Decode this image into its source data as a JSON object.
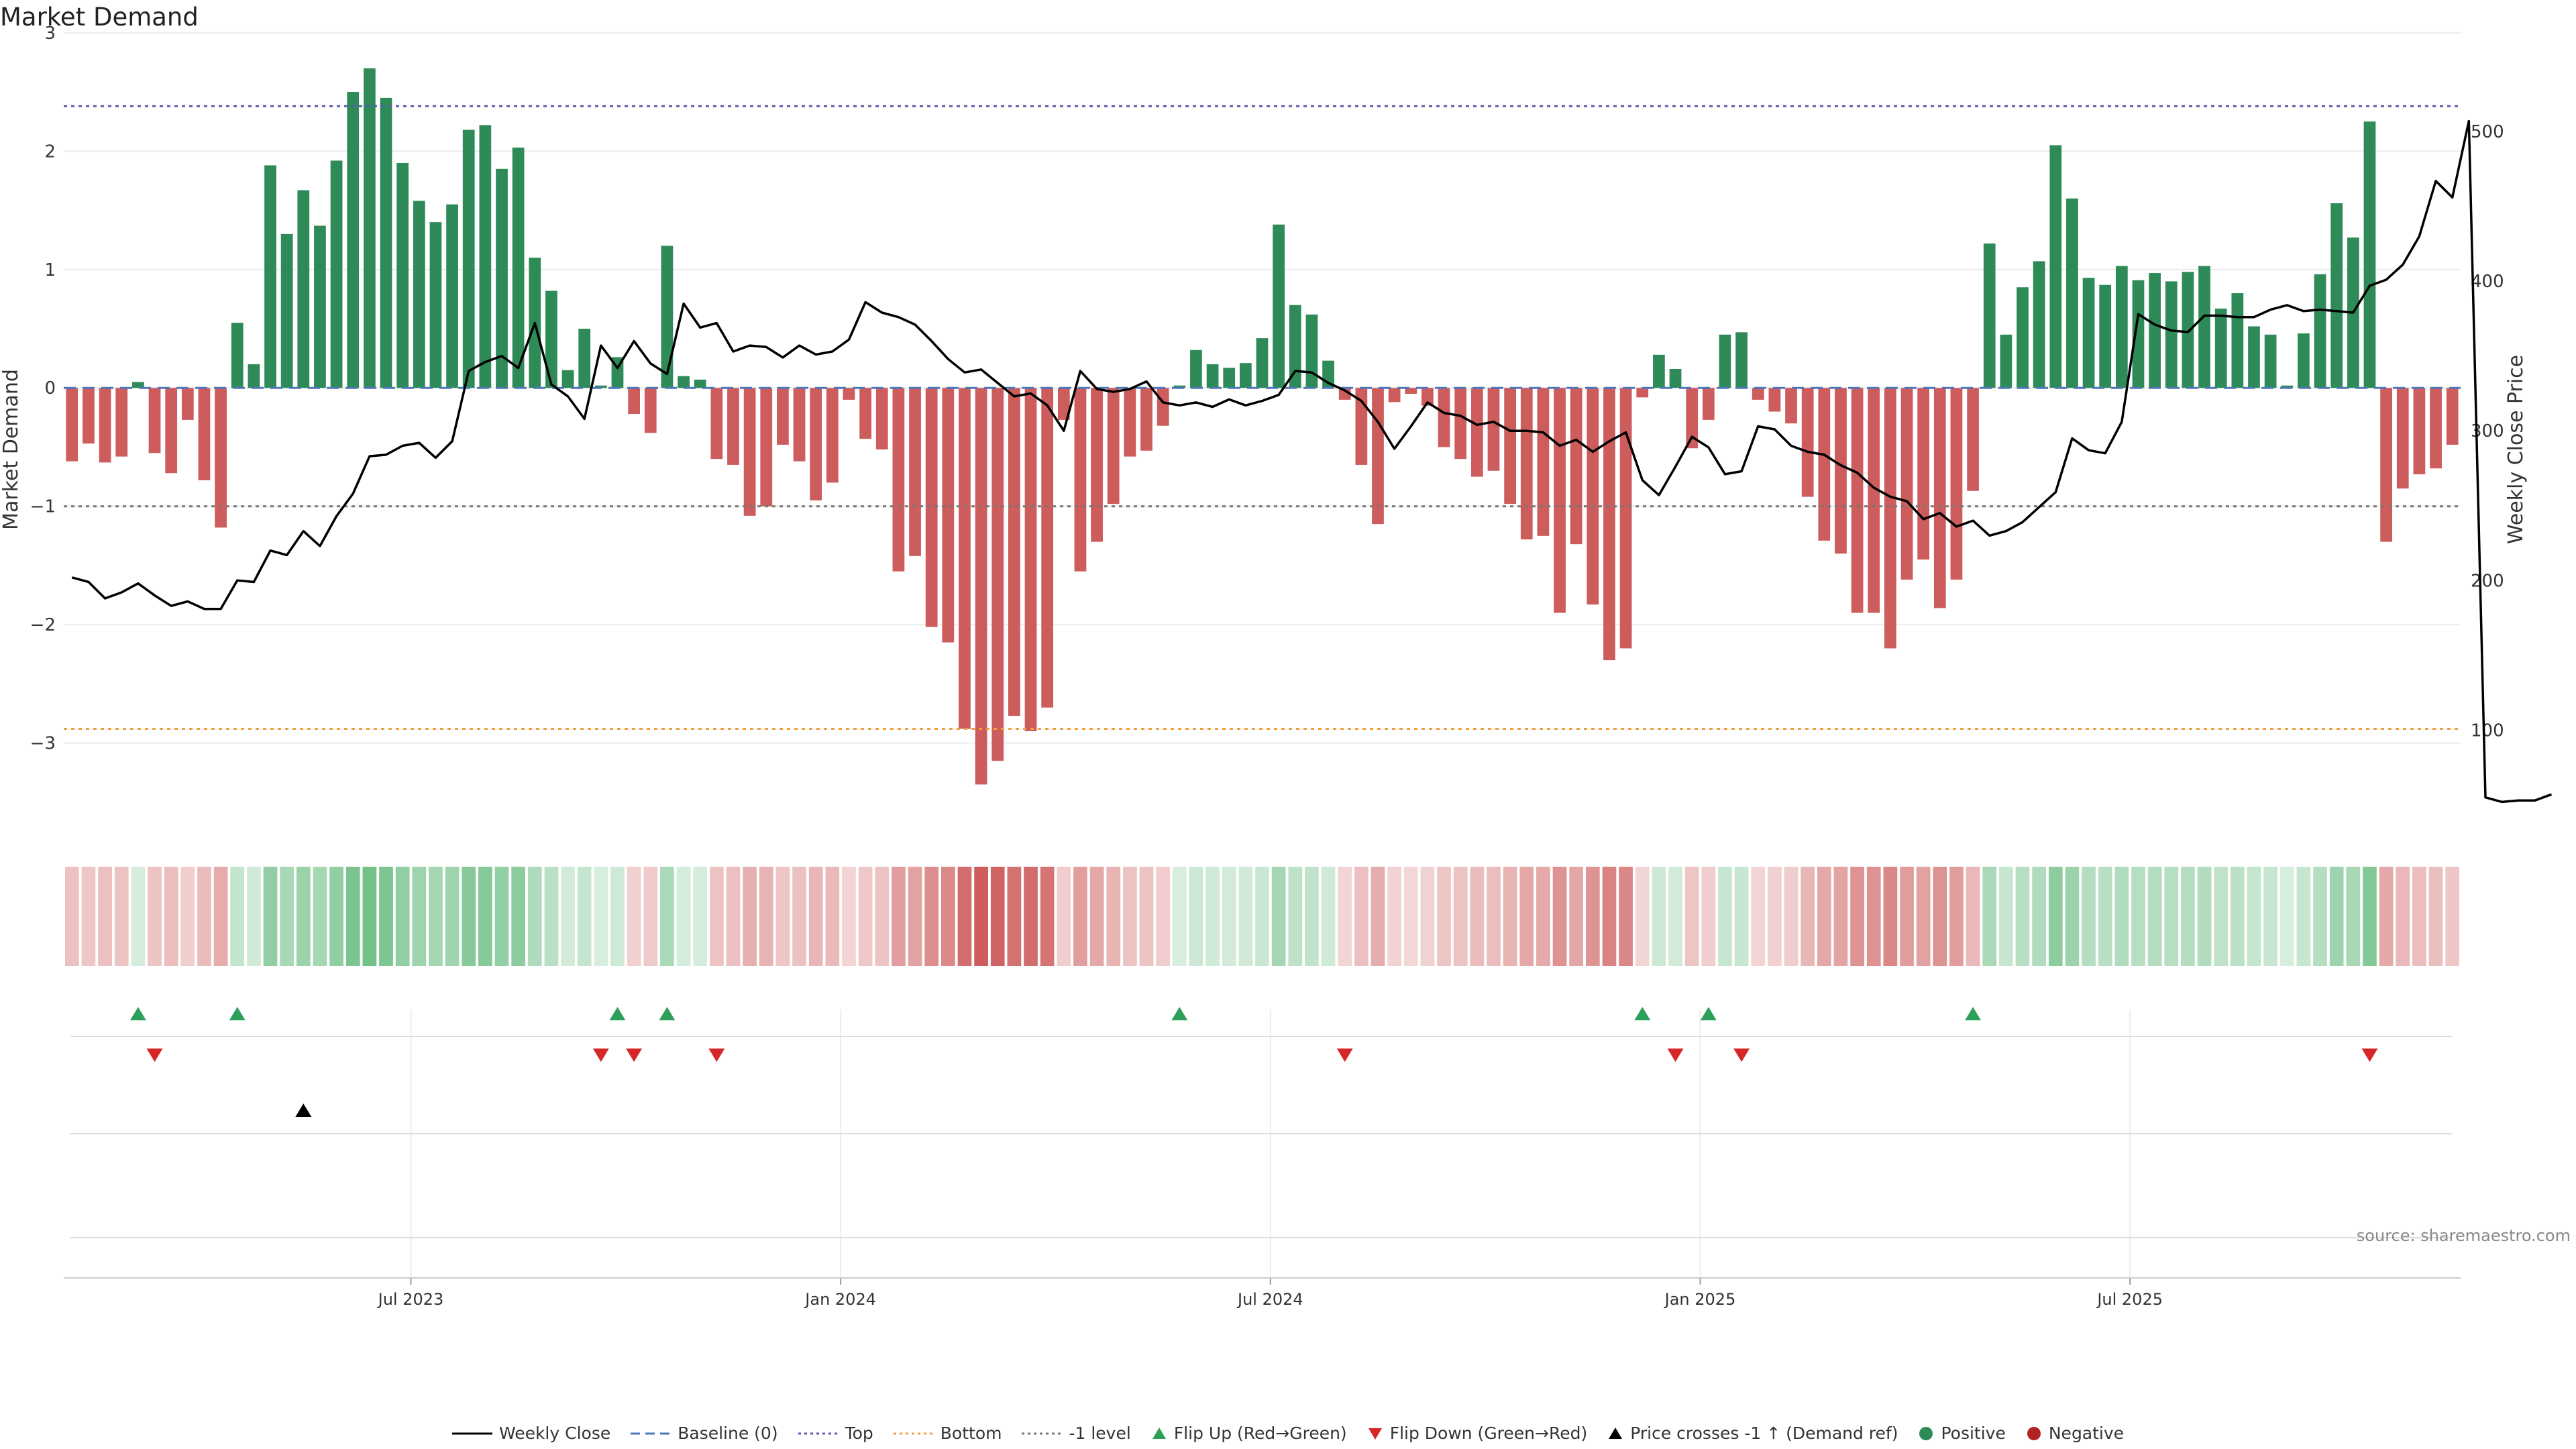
{
  "title": "Market Demand",
  "source": "source: sharemaestro.com",
  "legend": [
    {
      "label": "Weekly Close",
      "kind": "line-solid",
      "color": "#000000"
    },
    {
      "label": "Baseline (0)",
      "kind": "line-dash",
      "color": "#4f77b8"
    },
    {
      "label": "Top",
      "kind": "line-dot",
      "color": "#5a5ab0"
    },
    {
      "label": "Bottom",
      "kind": "line-dot",
      "color": "#f0a040"
    },
    {
      "label": "-1 level",
      "kind": "line-dot",
      "color": "#777777"
    },
    {
      "label": "Flip Up (Red→Green)",
      "kind": "tri-up",
      "color": "#2ca05a"
    },
    {
      "label": "Flip Down (Green→Red)",
      "kind": "tri-down",
      "color": "#d62728"
    },
    {
      "label": "Price crosses -1 ↑ (Demand ref)",
      "kind": "tri-up",
      "color": "#000000"
    },
    {
      "label": "Positive",
      "kind": "dot",
      "color": "#2e8b57"
    },
    {
      "label": "Negative",
      "kind": "dot",
      "color": "#b22222"
    }
  ],
  "colors": {
    "positive": "#2e8b57",
    "negative": "#cd5c5c",
    "price": "#000000",
    "top_line": "#5a5ab0",
    "bottom_line": "#f0a040",
    "minus1_line": "#777777",
    "flip_up": "#2ca05a",
    "flip_down": "#d62728"
  },
  "chart_data": {
    "type": "bar",
    "ylabel": "Market Demand",
    "y2label": "Weekly Close Price",
    "ylim": [
      -3.75,
      3.05
    ],
    "y2lim": [
      32,
      570
    ],
    "yticks": [
      "3",
      "2",
      "1",
      "0",
      "−1",
      "−2",
      "−3"
    ],
    "y2ticks": [
      "500",
      "400",
      "300",
      "200",
      "100"
    ],
    "x_ticks": [
      "Jul 2023",
      "Jan 2024",
      "Jul 2024",
      "Jan 2025",
      "Jul 2025"
    ],
    "top_level": 2.38,
    "bottom_level": -2.88,
    "minus1_level": -1,
    "demand": [
      -0.62,
      -0.47,
      -0.63,
      -0.58,
      0.05,
      -0.55,
      -0.72,
      -0.27,
      -0.78,
      -1.18,
      0.55,
      0.2,
      1.88,
      1.3,
      1.67,
      1.37,
      1.92,
      2.5,
      2.7,
      2.45,
      1.9,
      1.58,
      1.4,
      1.55,
      2.18,
      2.22,
      1.85,
      2.03,
      1.1,
      0.82,
      0.15,
      0.5,
      0.02,
      0.26,
      -0.22,
      -0.38,
      1.2,
      0.1,
      0.07,
      -0.6,
      -0.65,
      -1.08,
      -1.0,
      -0.48,
      -0.62,
      -0.95,
      -0.8,
      -0.1,
      -0.43,
      -0.52,
      -1.55,
      -1.42,
      -2.02,
      -2.15,
      -2.88,
      -3.35,
      -3.15,
      -2.77,
      -2.9,
      -2.7,
      -0.27,
      -1.55,
      -1.3,
      -0.98,
      -0.58,
      -0.53,
      -0.32,
      0.02,
      0.32,
      0.2,
      0.17,
      0.21,
      0.42,
      1.38,
      0.7,
      0.62,
      0.23,
      -0.1,
      -0.65,
      -1.15,
      -0.12,
      -0.05,
      -0.15,
      -0.5,
      -0.6,
      -0.75,
      -0.7,
      -0.98,
      -1.28,
      -1.25,
      -1.9,
      -1.32,
      -1.83,
      -2.3,
      -2.2,
      -0.08,
      0.28,
      0.16,
      -0.51,
      -0.27,
      0.45,
      0.47,
      -0.1,
      -0.2,
      -0.3,
      -0.92,
      -1.29,
      -1.4,
      -1.9,
      -1.9,
      -2.2,
      -1.62,
      -1.45,
      -1.86,
      -1.62,
      -0.87,
      1.22,
      0.45,
      0.85,
      1.07,
      2.05,
      1.6,
      0.93,
      0.87,
      1.03,
      0.91,
      0.97,
      0.9,
      0.98,
      1.03,
      0.67,
      0.8,
      0.52,
      0.45,
      0.02,
      0.46,
      0.96,
      1.56,
      1.27,
      2.25,
      -1.3,
      -0.85,
      -0.73,
      -0.68,
      -0.48
    ],
    "price": [
      202,
      199,
      188,
      192,
      198,
      190,
      183,
      186,
      181,
      181,
      200,
      199,
      220,
      217,
      233,
      223,
      243,
      258,
      283,
      284,
      290,
      292,
      282,
      293,
      340,
      346,
      350,
      342,
      372,
      331,
      323,
      308,
      357,
      342,
      360,
      345,
      338,
      385,
      369,
      372,
      353,
      357,
      356,
      349,
      357,
      351,
      353,
      361,
      386,
      379,
      376,
      371,
      360,
      348,
      339,
      341,
      332,
      323,
      325,
      317,
      300,
      340,
      328,
      326,
      328,
      333,
      319,
      317,
      319,
      316,
      321,
      317,
      320,
      324,
      340,
      339,
      332,
      327,
      320,
      306,
      288,
      303,
      319,
      312,
      310,
      304,
      306,
      300,
      300,
      299,
      290,
      294,
      286,
      293,
      299,
      267,
      257,
      276,
      296,
      289,
      271,
      273,
      303,
      301,
      290,
      286,
      284,
      277,
      272,
      262,
      256,
      253,
      241,
      245,
      236,
      240,
      230,
      233,
      239,
      249,
      259,
      295,
      287,
      285,
      306,
      378,
      371,
      367,
      366,
      377,
      377,
      376,
      376,
      381,
      384,
      380,
      381,
      380,
      379,
      397,
      401,
      411,
      430,
      467,
      456,
      507,
      55,
      52,
      53,
      53,
      57
    ],
    "flip_up_weeks": [
      4,
      10,
      33,
      36,
      67,
      95,
      99,
      115
    ],
    "flip_down_weeks": [
      5,
      32,
      34,
      39,
      77,
      97,
      101,
      139
    ],
    "price_cross_weeks": [
      14
    ]
  }
}
